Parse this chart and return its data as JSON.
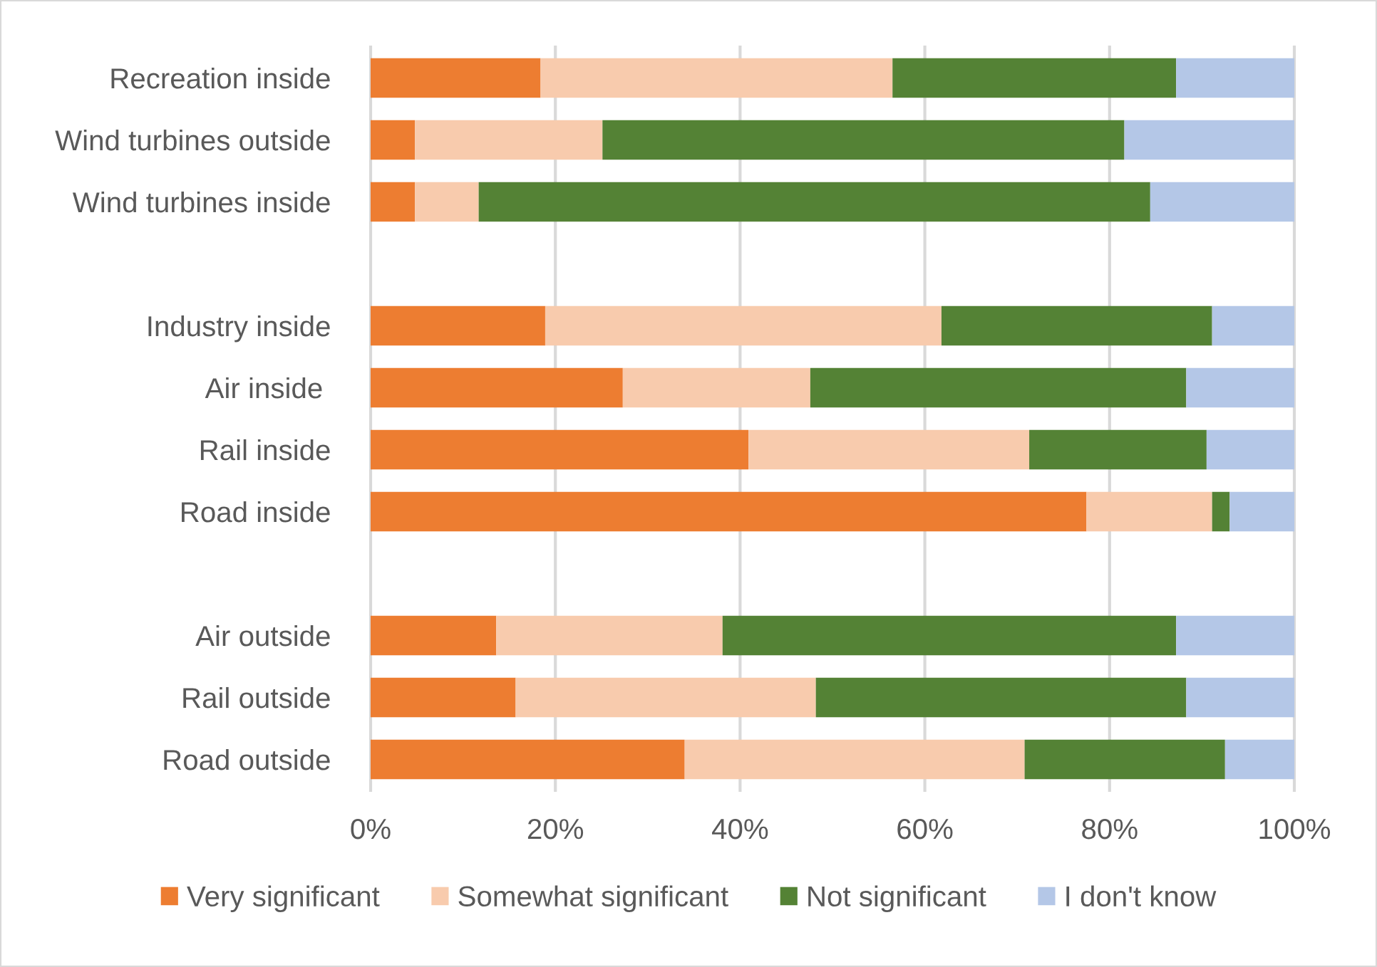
{
  "chart_data": {
    "type": "bar",
    "orientation": "horizontal",
    "stacked": true,
    "categories": [
      "Recreation inside",
      "Wind turbines outside",
      "Wind turbines inside",
      null,
      "Industry inside",
      "Air inside ",
      "Rail inside",
      "Road inside",
      null,
      "Air outside",
      "Rail outside",
      "Road outside"
    ],
    "series": [
      {
        "name": "Very significant",
        "color": "#ed7d31",
        "values": [
          18.4,
          4.8,
          4.8,
          null,
          18.9,
          27.3,
          40.9,
          77.5,
          null,
          13.6,
          15.7,
          34.0
        ]
      },
      {
        "name": "Somewhat significant",
        "color": "#f8cbad",
        "values": [
          38.1,
          20.3,
          6.9,
          null,
          42.9,
          20.3,
          30.4,
          13.6,
          null,
          24.5,
          32.5,
          36.8
        ]
      },
      {
        "name": "Not significant",
        "color": "#548235",
        "values": [
          30.7,
          56.5,
          72.7,
          null,
          29.3,
          40.7,
          19.2,
          1.9,
          null,
          49.1,
          40.1,
          21.7
        ]
      },
      {
        "name": "I don't know",
        "color": "#b4c7e7",
        "values": [
          12.8,
          18.4,
          15.6,
          null,
          8.9,
          11.7,
          9.5,
          7.0,
          null,
          12.8,
          11.7,
          7.5
        ]
      }
    ],
    "xlim": [
      0,
      100
    ],
    "xticks": [
      {
        "value": 0,
        "label": "0%"
      },
      {
        "value": 20,
        "label": "20%"
      },
      {
        "value": 40,
        "label": "40%"
      },
      {
        "value": 60,
        "label": "60%"
      },
      {
        "value": 80,
        "label": "80%"
      },
      {
        "value": 100,
        "label": "100%"
      }
    ],
    "grid": "x",
    "legend": "bottom"
  }
}
